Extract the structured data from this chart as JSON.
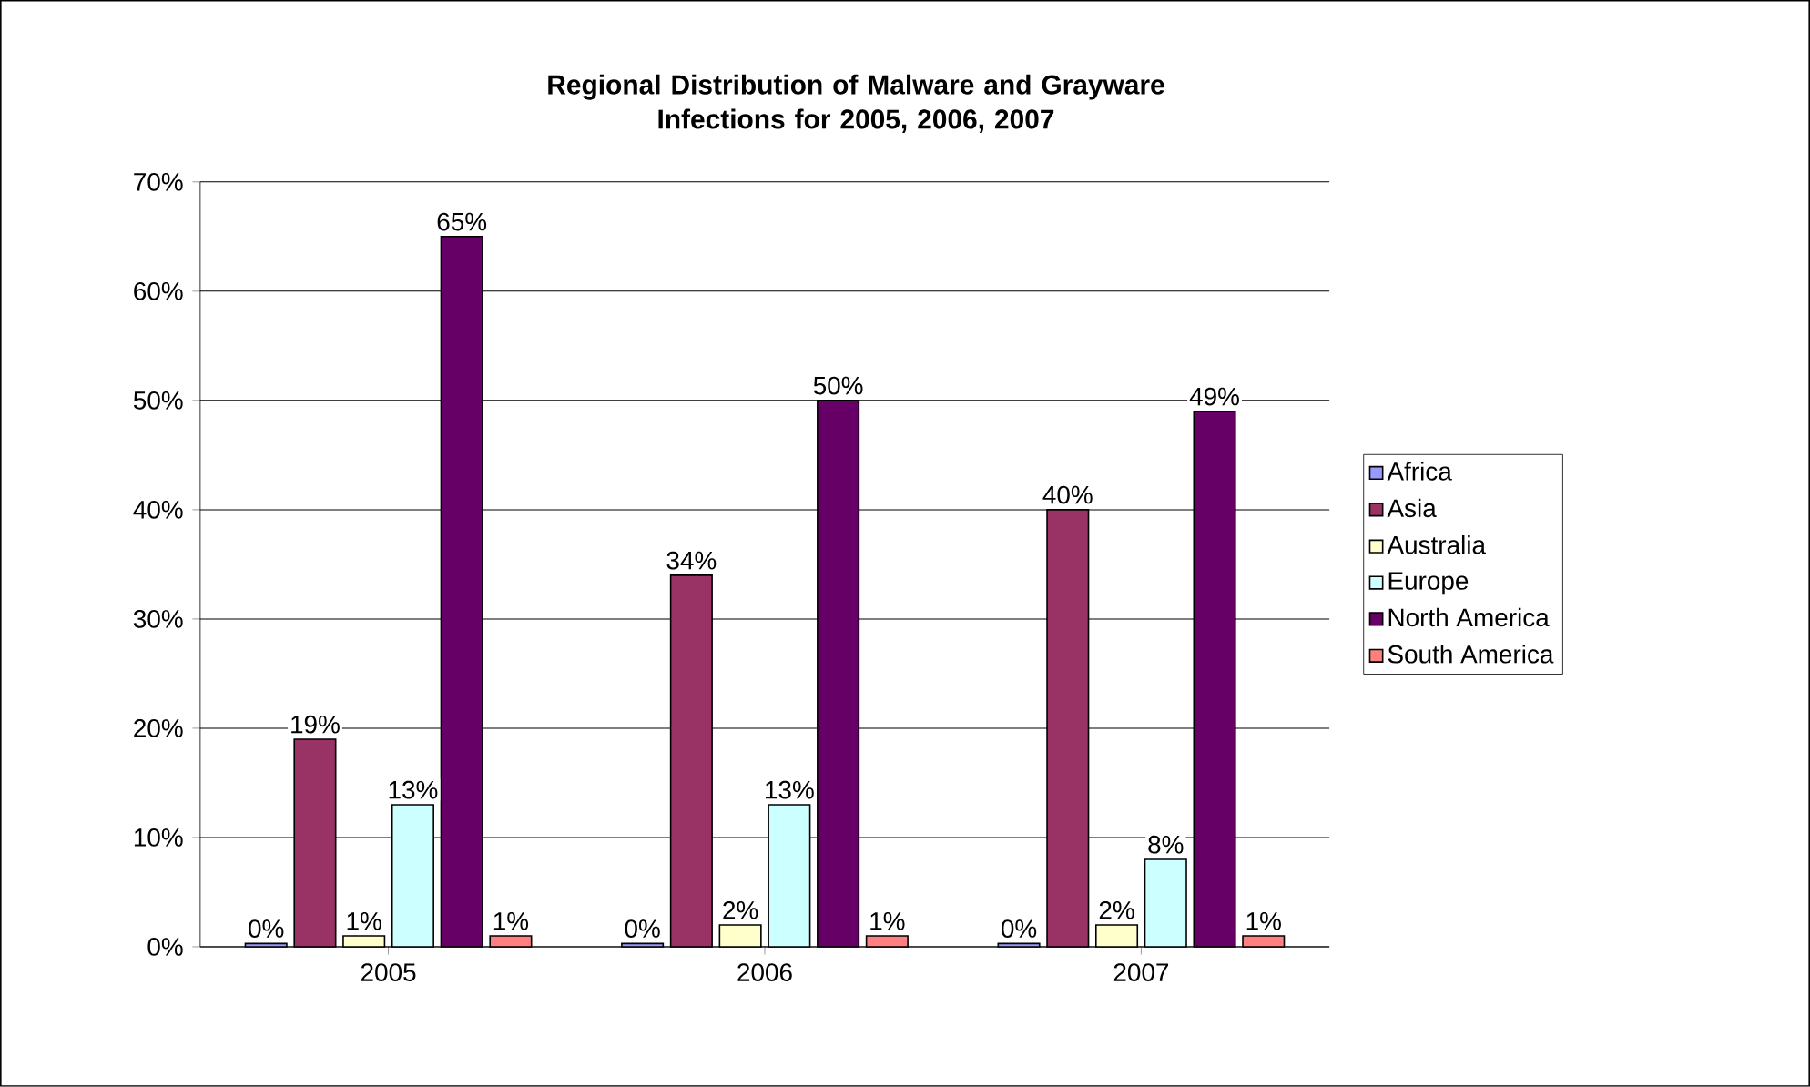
{
  "chart_data": {
    "type": "bar",
    "title": "Regional Distribution of Malware and Grayware\nInfections for 2005, 2006, 2007",
    "categories": [
      "2005",
      "2006",
      "2007"
    ],
    "series": [
      {
        "name": "Africa",
        "color": "#9999ff",
        "values": [
          0.3,
          0.3,
          0.3
        ],
        "value_labels": [
          "0%",
          "0%",
          "0%"
        ]
      },
      {
        "name": "Asia",
        "color": "#993366",
        "values": [
          19,
          34,
          40
        ],
        "value_labels": [
          "19%",
          "34%",
          "40%"
        ]
      },
      {
        "name": "Australia",
        "color": "#ffffcc",
        "values": [
          1,
          2,
          2
        ],
        "value_labels": [
          "1%",
          "2%",
          "2%"
        ]
      },
      {
        "name": "Europe",
        "color": "#ccffff",
        "values": [
          13,
          13,
          8
        ],
        "value_labels": [
          "13%",
          "13%",
          "8%"
        ]
      },
      {
        "name": "North America",
        "color": "#660066",
        "values": [
          65,
          50,
          49
        ],
        "value_labels": [
          "65%",
          "50%",
          "49%"
        ]
      },
      {
        "name": "South America",
        "color": "#ff8080",
        "values": [
          1,
          1,
          1
        ],
        "value_labels": [
          "1%",
          "1%",
          "1%"
        ]
      }
    ],
    "ylim": [
      0,
      70
    ],
    "yticks": [
      {
        "value": 0,
        "label": "0%"
      },
      {
        "value": 10,
        "label": "10%"
      },
      {
        "value": 20,
        "label": "20%"
      },
      {
        "value": 30,
        "label": "30%"
      },
      {
        "value": 40,
        "label": "40%"
      },
      {
        "value": 50,
        "label": "50%"
      },
      {
        "value": 60,
        "label": "60%"
      },
      {
        "value": 70,
        "label": "70%"
      }
    ],
    "grid": "y",
    "legend": "right"
  }
}
